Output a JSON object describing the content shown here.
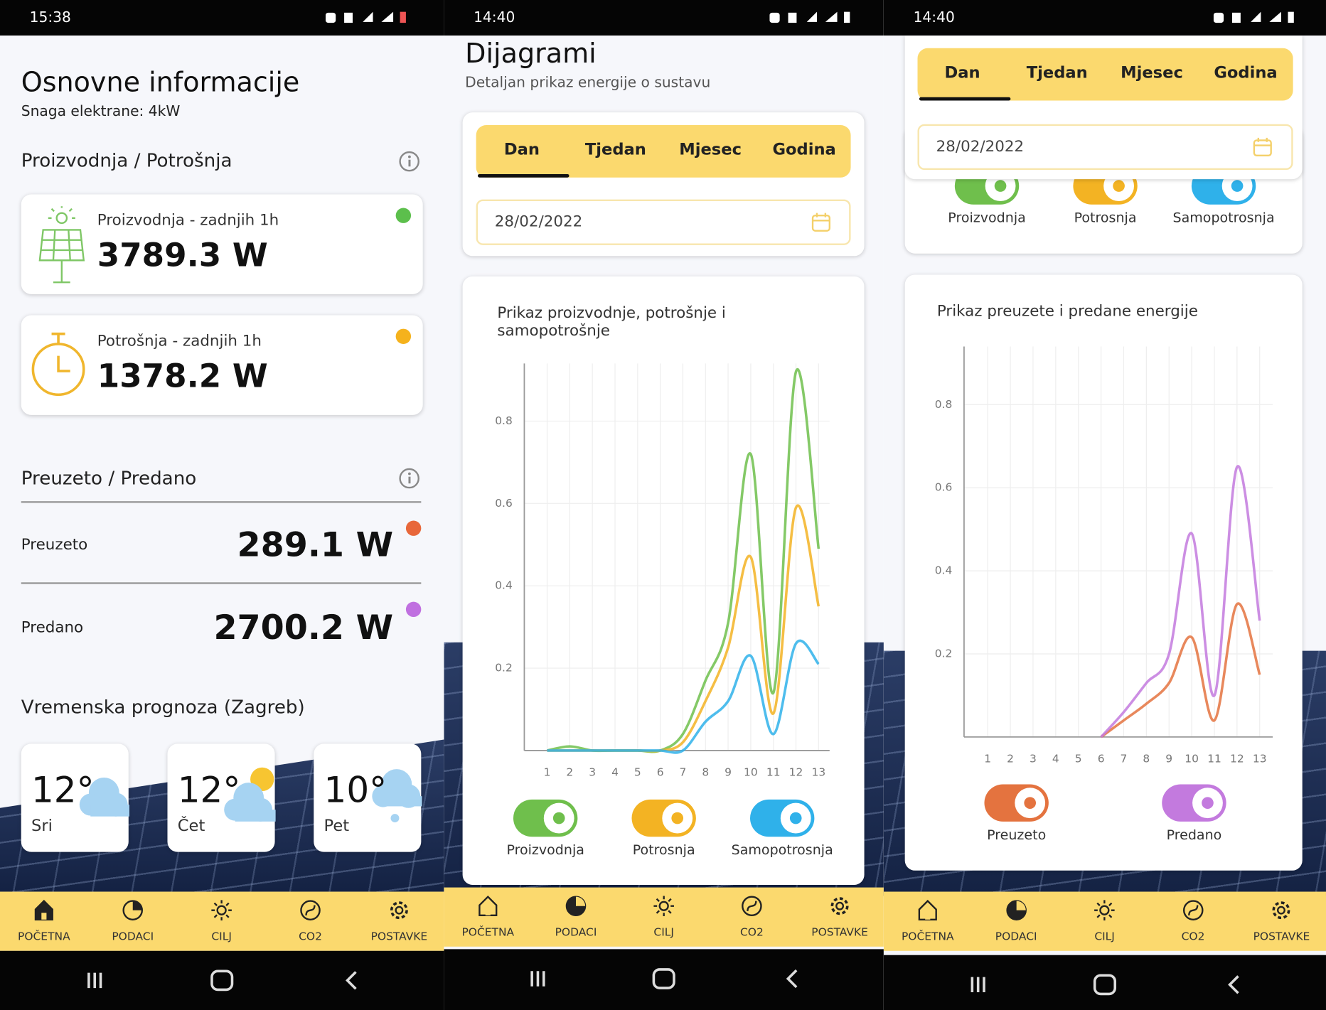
{
  "screens": [
    {
      "time": "15:38",
      "title": "Osnovne informacije",
      "subtitle": "Snaga elektrane: 4kW",
      "section_production": "Proizvodnja / Potrošnja",
      "cards": [
        {
          "label": "Proizvodnja - zadnjih 1h",
          "value": "3789.3 W"
        },
        {
          "label": "Potrošnja - zadnjih 1h",
          "value": "1378.2 W"
        }
      ],
      "section_grid": "Preuzeto / Predano",
      "grid_rows": [
        {
          "label": "Preuzeto",
          "value": "289.1 W"
        },
        {
          "label": "Predano",
          "value": "2700.2 W"
        }
      ],
      "section_weather": "Vremenska prognoza (Zagreb)",
      "weather": [
        {
          "temp": "12°",
          "day": "Sri"
        },
        {
          "temp": "12°",
          "day": "Čet"
        },
        {
          "temp": "10°",
          "day": "Pet"
        }
      ]
    },
    {
      "time": "14:40",
      "title": "Dijagrami",
      "subtitle": "Detaljan prikaz energije o sustavu",
      "date": "28/02/2022"
    },
    {
      "time": "14:40",
      "date": "28/02/2022"
    }
  ],
  "tabs": [
    "Dan",
    "Tjedan",
    "Mjesec",
    "Godina"
  ],
  "nav": [
    "POČETNA",
    "PODACI",
    "CILJ",
    "CO2",
    "POSTAVKE"
  ],
  "chart_data": [
    {
      "type": "line",
      "title": "Prikaz proizvodnje, potrošnje i samopotrošnje",
      "categories": [
        "1",
        "2",
        "3",
        "4",
        "5",
        "6",
        "7",
        "8",
        "9",
        "10",
        "11",
        "12",
        "13"
      ],
      "series": [
        {
          "name": "Proizvodnja",
          "color": "#6fbf4c",
          "values": [
            0,
            0.01,
            0,
            0,
            0,
            0,
            0.04,
            0.17,
            0.31,
            0.72,
            0.14,
            0.92,
            0.49
          ]
        },
        {
          "name": "Potrosnja",
          "color": "#f3b323",
          "values": [
            0,
            0,
            0,
            0,
            0,
            0,
            0.02,
            0.12,
            0.25,
            0.47,
            0.09,
            0.59,
            0.35
          ]
        },
        {
          "name": "Samopotrosnja",
          "color": "#2fb1ea",
          "values": [
            0,
            0,
            0,
            0,
            0,
            0,
            0,
            0.07,
            0.12,
            0.23,
            0.04,
            0.26,
            0.21
          ]
        }
      ],
      "ylim": [
        0,
        0.94
      ],
      "yticks": [
        0.2,
        0.4,
        0.6,
        0.8
      ],
      "grid": true
    },
    {
      "type": "line",
      "title": "Prikaz preuzete i predane energije",
      "categories": [
        "1",
        "2",
        "3",
        "4",
        "5",
        "6",
        "7",
        "8",
        "9",
        "10",
        "11",
        "12",
        "13"
      ],
      "series": [
        {
          "name": "Preuzeto",
          "color": "#e4733f",
          "values": [
            null,
            null,
            null,
            null,
            null,
            0,
            0.04,
            0.08,
            0.13,
            0.24,
            0.04,
            0.32,
            0.15
          ]
        },
        {
          "name": "Predano",
          "color": "#c37ade",
          "values": [
            null,
            null,
            null,
            null,
            null,
            0,
            0.06,
            0.13,
            0.2,
            0.49,
            0.1,
            0.65,
            0.28
          ]
        }
      ],
      "ylim": [
        0,
        0.94
      ],
      "yticks": [
        0.2,
        0.4,
        0.6,
        0.8
      ],
      "grid": true
    }
  ]
}
